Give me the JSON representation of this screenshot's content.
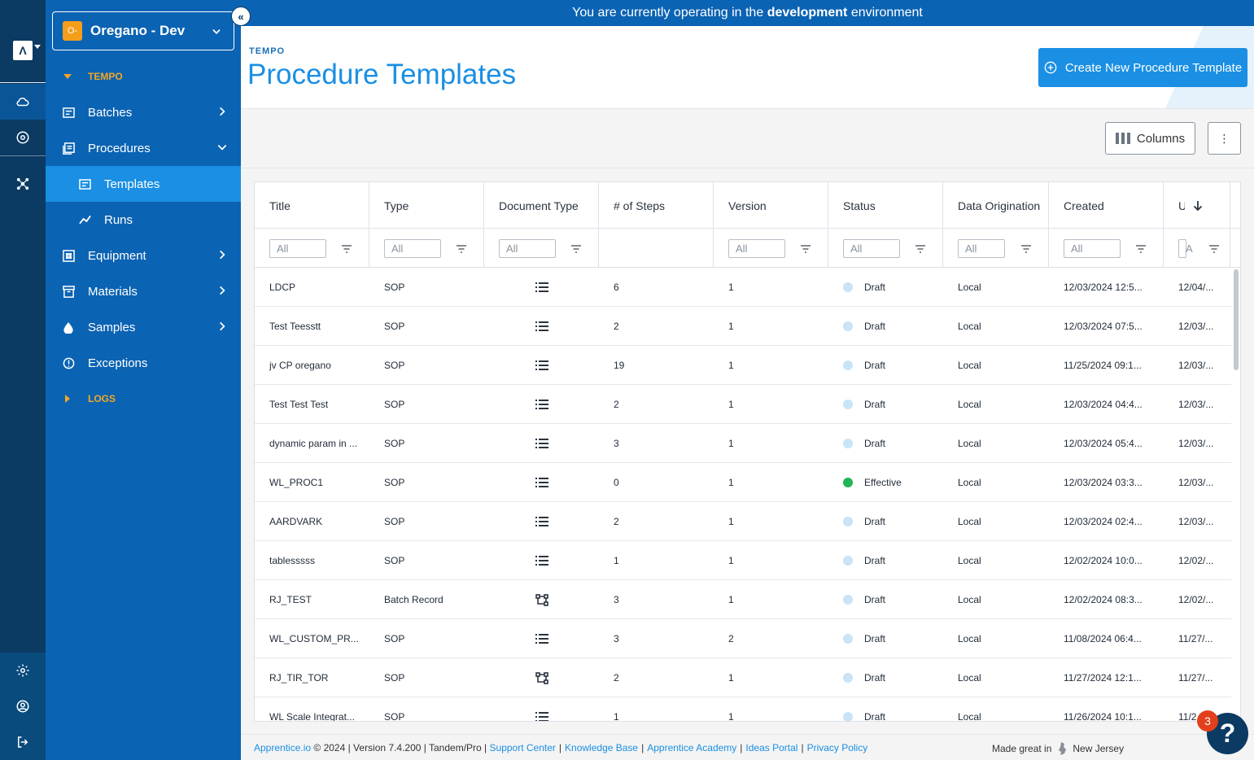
{
  "banner": {
    "prefix": "You are currently operating in the",
    "env": "development",
    "suffix": "environment"
  },
  "env_selector": {
    "badge": "O-",
    "name": "Oregano - Dev"
  },
  "sidebar": {
    "section_tempo": "TEMPO",
    "section_logs": "LOGS",
    "items": [
      {
        "label": "Batches",
        "icon": "batches-icon"
      },
      {
        "label": "Procedures",
        "icon": "procedures-icon"
      },
      {
        "label": "Templates",
        "icon": "templates-icon"
      },
      {
        "label": "Runs",
        "icon": "runs-icon"
      },
      {
        "label": "Equipment",
        "icon": "equipment-icon"
      },
      {
        "label": "Materials",
        "icon": "materials-icon"
      },
      {
        "label": "Samples",
        "icon": "samples-icon"
      },
      {
        "label": "Exceptions",
        "icon": "exceptions-icon"
      }
    ]
  },
  "header": {
    "breadcrumb": "TEMPO",
    "title": "Procedure Templates",
    "create_label": "Create New Procedure Template"
  },
  "toolbar": {
    "columns_label": "Columns",
    "more_icon": "⋮"
  },
  "table": {
    "columns": [
      {
        "label": "Title",
        "filter": "All"
      },
      {
        "label": "Type",
        "filter": "All"
      },
      {
        "label": "Document Type",
        "filter": "All"
      },
      {
        "label": "# of Steps",
        "filter": ""
      },
      {
        "label": "Version",
        "filter": "All"
      },
      {
        "label": "Status",
        "filter": "All"
      },
      {
        "label": "Data Origination",
        "filter": "All"
      },
      {
        "label": "Created",
        "filter": "All"
      },
      {
        "label": "U",
        "filter": "A"
      }
    ],
    "rows": [
      {
        "title": "LDCP",
        "type": "SOP",
        "doc": "list",
        "steps": "6",
        "version": "1",
        "status": "Draft",
        "origin": "Local",
        "created": "12/03/2024 12:5...",
        "updated": "12/04/..."
      },
      {
        "title": "Test Teesstt",
        "type": "SOP",
        "doc": "list",
        "steps": "2",
        "version": "1",
        "status": "Draft",
        "origin": "Local",
        "created": "12/03/2024 07:5...",
        "updated": "12/03/..."
      },
      {
        "title": "jv CP oregano",
        "type": "SOP",
        "doc": "list",
        "steps": "19",
        "version": "1",
        "status": "Draft",
        "origin": "Local",
        "created": "11/25/2024 09:1...",
        "updated": "12/03/..."
      },
      {
        "title": "Test Test Test",
        "type": "SOP",
        "doc": "list",
        "steps": "2",
        "version": "1",
        "status": "Draft",
        "origin": "Local",
        "created": "12/03/2024 04:4...",
        "updated": "12/03/..."
      },
      {
        "title": "dynamic param in ...",
        "type": "SOP",
        "doc": "list",
        "steps": "3",
        "version": "1",
        "status": "Draft",
        "origin": "Local",
        "created": "12/03/2024 05:4...",
        "updated": "12/03/..."
      },
      {
        "title": "WL_PROC1",
        "type": "SOP",
        "doc": "list",
        "steps": "0",
        "version": "1",
        "status": "Effective",
        "origin": "Local",
        "created": "12/03/2024 03:3...",
        "updated": "12/03/..."
      },
      {
        "title": "AARDVARK",
        "type": "SOP",
        "doc": "list",
        "steps": "2",
        "version": "1",
        "status": "Draft",
        "origin": "Local",
        "created": "12/03/2024 02:4...",
        "updated": "12/03/..."
      },
      {
        "title": "tablesssss",
        "type": "SOP",
        "doc": "list",
        "steps": "1",
        "version": "1",
        "status": "Draft",
        "origin": "Local",
        "created": "12/02/2024 10:0...",
        "updated": "12/02/..."
      },
      {
        "title": "RJ_TEST",
        "type": "Batch Record",
        "doc": "tree",
        "steps": "3",
        "version": "1",
        "status": "Draft",
        "origin": "Local",
        "created": "12/02/2024 08:3...",
        "updated": "12/02/..."
      },
      {
        "title": "WL_CUSTOM_PR...",
        "type": "SOP",
        "doc": "list",
        "steps": "3",
        "version": "2",
        "status": "Draft",
        "origin": "Local",
        "created": "11/08/2024 06:4...",
        "updated": "11/27/..."
      },
      {
        "title": "RJ_TIR_TOR",
        "type": "SOP",
        "doc": "tree",
        "steps": "2",
        "version": "1",
        "status": "Draft",
        "origin": "Local",
        "created": "11/27/2024 12:1...",
        "updated": "11/27/..."
      },
      {
        "title": "WL Scale Integrat...",
        "type": "SOP",
        "doc": "list",
        "steps": "1",
        "version": "1",
        "status": "Draft",
        "origin": "Local",
        "created": "11/26/2024 10:1...",
        "updated": "11/2..."
      }
    ]
  },
  "footer": {
    "brand_link": "Apprentice.io",
    "meta": "© 2024 | Version 7.4.200 | Tandem/Pro |",
    "links": [
      "Support Center",
      "Knowledge Base",
      "Apprentice Academy",
      "Ideas Portal",
      "Privacy Policy"
    ],
    "made_prefix": "Made great in",
    "made_place": "New Jersey"
  },
  "help": {
    "badge": "3",
    "label": "?"
  },
  "colors": {
    "draft": "#c9e3f7",
    "effective": "#22b457",
    "accent": "#1a8fe3",
    "sidebar": "#0b63b3",
    "rail": "#0b3a63"
  }
}
